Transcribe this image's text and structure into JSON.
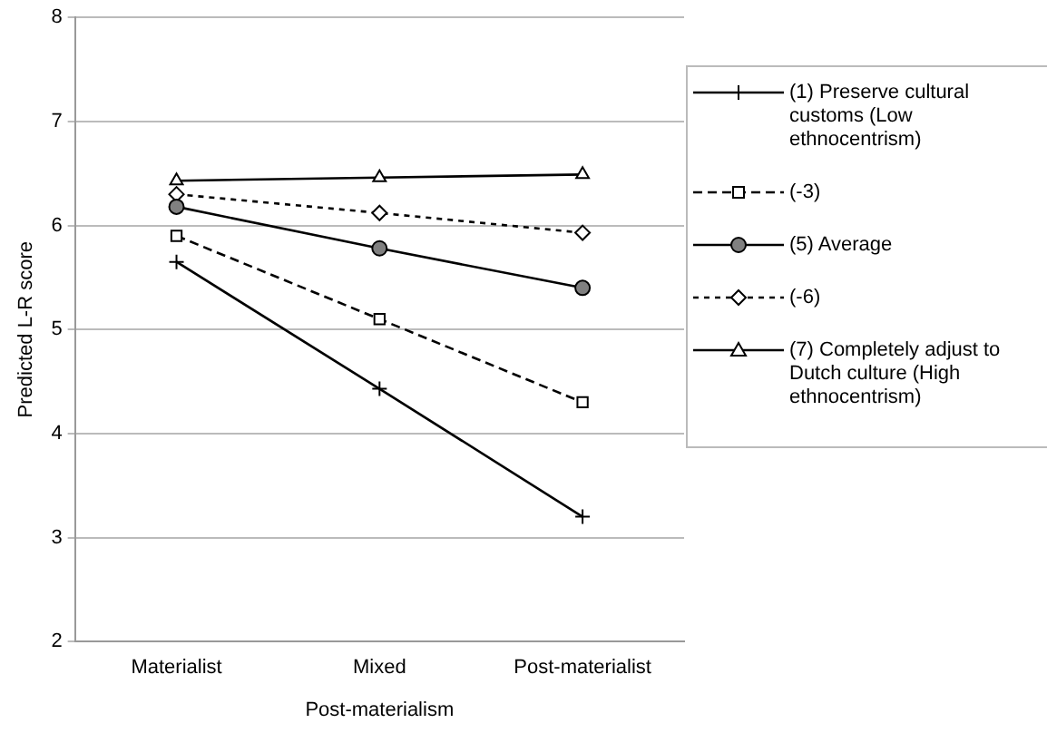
{
  "chart_data": {
    "type": "line",
    "xlabel": "Post-materialism",
    "ylabel": "Predicted L-R score",
    "categories": [
      "Materialist",
      "Mixed",
      "Post-materialist"
    ],
    "ylim": [
      2,
      8
    ],
    "yticks": [
      2,
      3,
      4,
      5,
      6,
      7,
      8
    ],
    "grid": "y",
    "legend": "right",
    "series": [
      {
        "name": "(1) Preserve cultural customs (Low ethnocentrism)",
        "color": "#000000",
        "marker": "cross",
        "line_style": "solid",
        "values": [
          5.65,
          4.43,
          3.2
        ]
      },
      {
        "name": "(-3)",
        "color": "#000000",
        "marker": "square",
        "line_style": "dashed",
        "values": [
          5.9,
          5.1,
          4.3
        ]
      },
      {
        "name": "(5) Average",
        "color": "#000000",
        "marker": "circle",
        "line_style": "solid",
        "values": [
          6.18,
          5.78,
          5.4
        ]
      },
      {
        "name": "(-6)",
        "color": "#000000",
        "marker": "diamond",
        "line_style": "dotted",
        "values": [
          6.3,
          6.12,
          5.93
        ]
      },
      {
        "name": "(7) Completely adjust to Dutch culture (High ethnocentrism)",
        "color": "#000000",
        "marker": "triangle",
        "line_style": "solid",
        "values": [
          6.43,
          6.46,
          6.49
        ]
      }
    ]
  }
}
